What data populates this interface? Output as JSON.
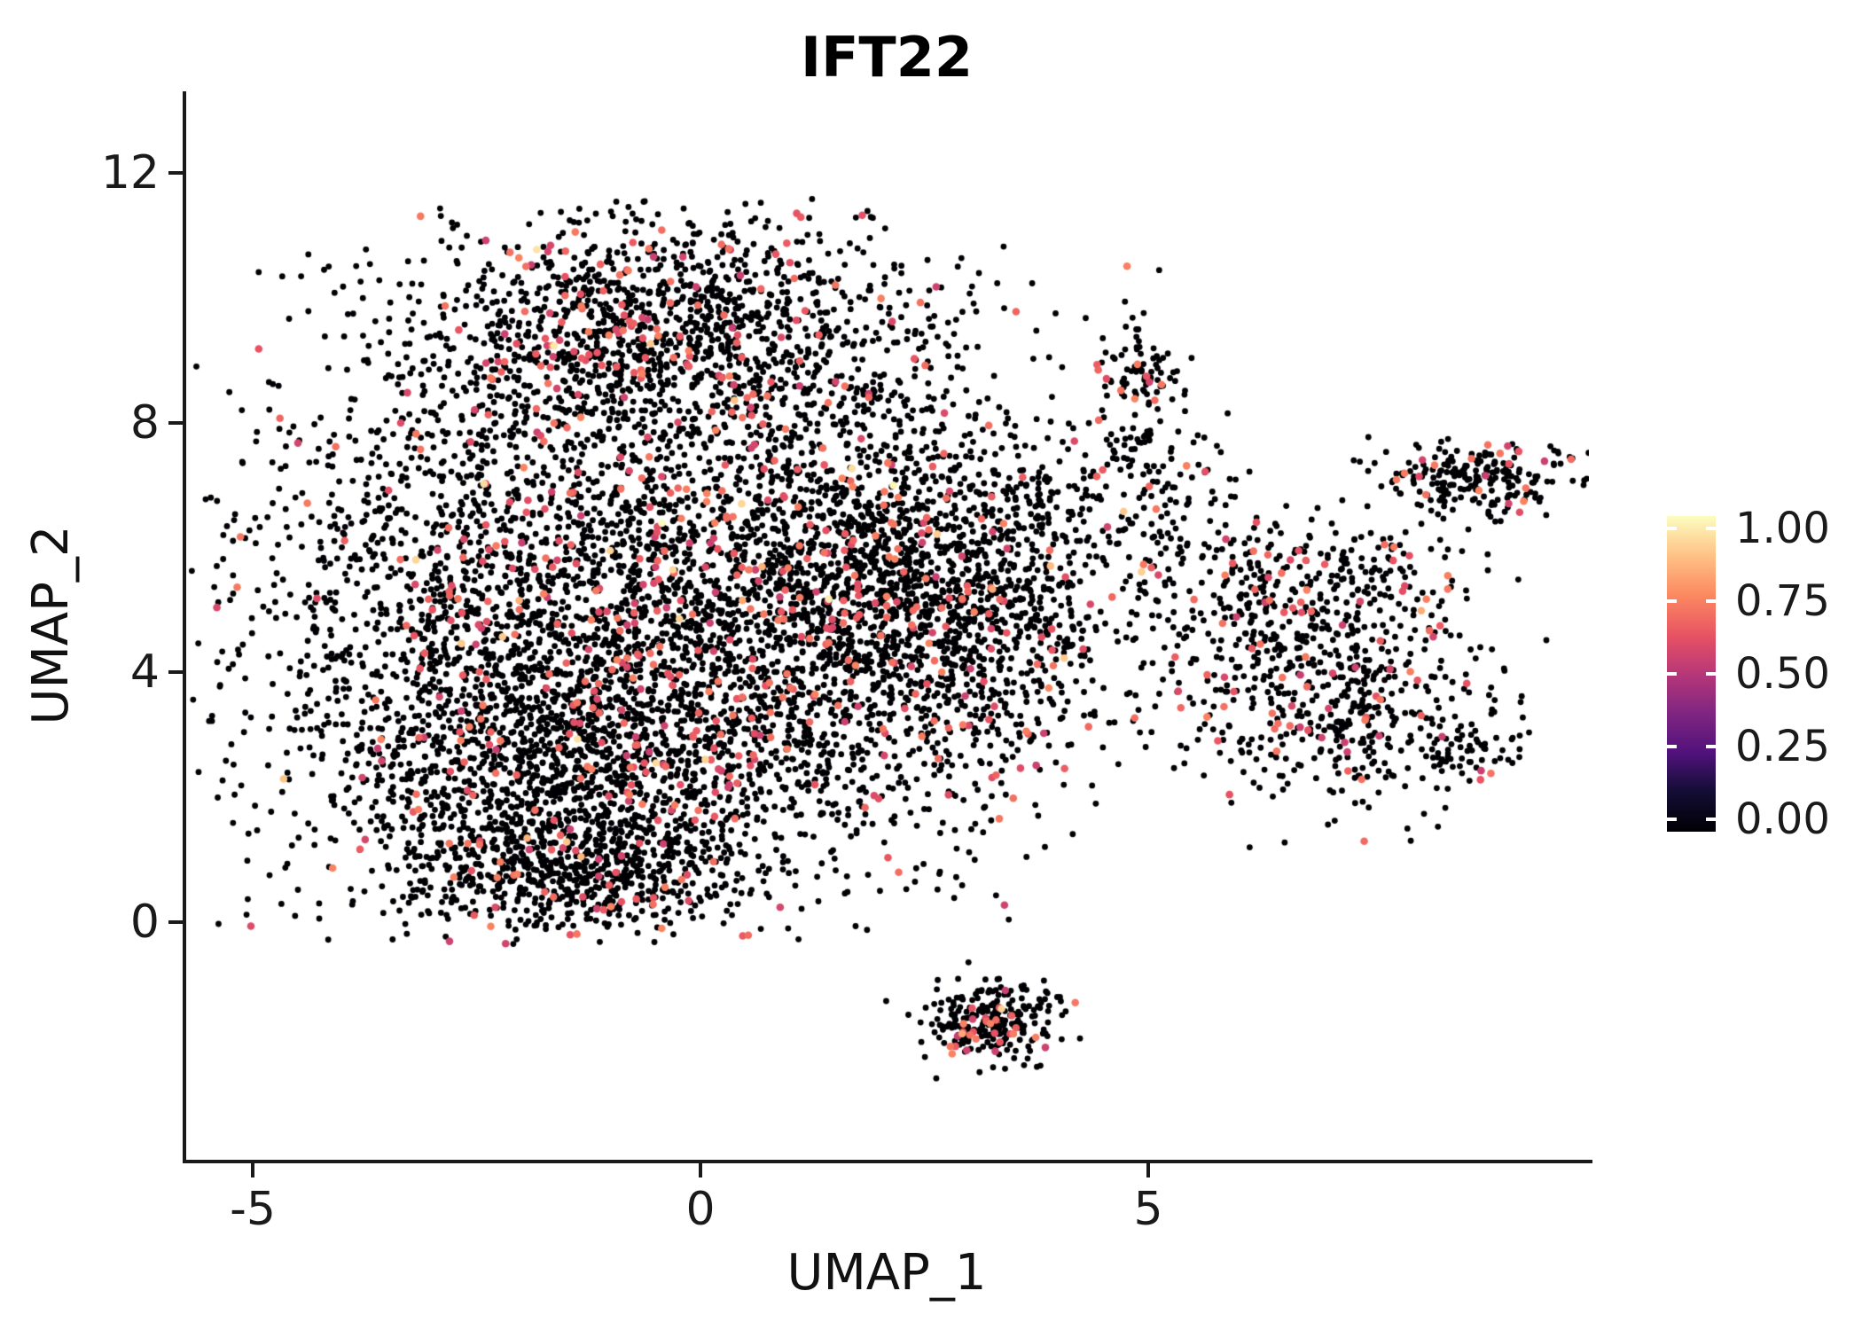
{
  "title": "IFT22",
  "chart_data": {
    "type": "scatter",
    "subtype": "umap-feature-plot",
    "title": "IFT22",
    "xlabel": "UMAP_1",
    "ylabel": "UMAP_2",
    "xlim": [
      -5.7,
      9.9
    ],
    "ylim": [
      -3.8,
      12.9
    ],
    "grid": false,
    "background": "#ffffff",
    "point_color_low": "#000004",
    "point_color_mid": "#e75263",
    "point_color_high": "#fcfdbf",
    "xticks": {
      "labels": [
        "-5",
        "0",
        "5"
      ],
      "values": [
        -5,
        0,
        5
      ]
    },
    "yticks": {
      "labels": [
        "12",
        "8",
        "4",
        "0"
      ],
      "values": [
        12,
        8,
        4,
        0
      ]
    },
    "colorbar": {
      "position": "right",
      "ticks": [
        "1.00",
        "0.75",
        "0.50",
        "0.25",
        "0.00"
      ],
      "values": [
        1.0,
        0.75,
        0.5,
        0.25,
        0.0
      ],
      "stops": [
        {
          "p": 0.0,
          "c": "#000004"
        },
        {
          "p": 0.13,
          "c": "#140e36"
        },
        {
          "p": 0.25,
          "c": "#51127c"
        },
        {
          "p": 0.38,
          "c": "#822681"
        },
        {
          "p": 0.5,
          "c": "#b73779"
        },
        {
          "p": 0.62,
          "c": "#e75263"
        },
        {
          "p": 0.75,
          "c": "#fc8961"
        },
        {
          "p": 0.88,
          "c": "#fec488"
        },
        {
          "p": 1.0,
          "c": "#fcfdbf"
        }
      ]
    },
    "clusters": [
      {
        "n": 1700,
        "cx": -2.3,
        "cy": 5.2,
        "sx": 1.5,
        "sy": 2.0,
        "frac": 0.07
      },
      {
        "n": 1500,
        "cx": -0.4,
        "cy": 9.4,
        "sx": 1.55,
        "sy": 1.05,
        "frac": 0.1
      },
      {
        "n": 2100,
        "cx": 0.6,
        "cy": 4.4,
        "sx": 1.6,
        "sy": 1.8,
        "frac": 0.09
      },
      {
        "n": 1100,
        "cx": -1.6,
        "cy": 2.1,
        "sx": 1.3,
        "sy": 1.1,
        "frac": 0.07
      },
      {
        "n": 650,
        "cx": 1.9,
        "cy": 6.2,
        "sx": 1.0,
        "sy": 1.3,
        "frac": 0.08
      },
      {
        "n": 480,
        "cx": -1.4,
        "cy": 0.7,
        "sx": 0.95,
        "sy": 0.5,
        "frac": 0.09
      },
      {
        "n": 620,
        "cx": 2.9,
        "cy": 4.7,
        "sx": 0.8,
        "sy": 1.2,
        "frac": 0.09
      },
      {
        "n": 150,
        "cx": 3.7,
        "cy": 6.6,
        "sx": 0.7,
        "sy": 0.6,
        "frac": 0.07
      },
      {
        "n": 90,
        "cx": 4.85,
        "cy": 8.7,
        "sx": 0.28,
        "sy": 0.4,
        "frac": 0.12
      },
      {
        "n": 45,
        "cx": 4.8,
        "cy": 7.5,
        "sx": 0.35,
        "sy": 0.35,
        "frac": 0.05
      },
      {
        "n": 230,
        "cx": 8.6,
        "cy": 7.1,
        "sx": 0.55,
        "sy": 0.3,
        "frac": 0.1
      },
      {
        "n": 170,
        "cx": 6.4,
        "cy": 5.2,
        "sx": 0.5,
        "sy": 0.55,
        "frac": 0.08
      },
      {
        "n": 470,
        "cx": 7.2,
        "cy": 3.5,
        "sx": 0.85,
        "sy": 0.8,
        "frac": 0.09
      },
      {
        "n": 55,
        "cx": 8.5,
        "cy": 2.7,
        "sx": 0.3,
        "sy": 0.2,
        "frac": 0.08
      },
      {
        "n": 35,
        "cx": 5.7,
        "cy": 6.4,
        "sx": 0.45,
        "sy": 0.5,
        "frac": 0.06
      },
      {
        "n": 270,
        "cx": 3.25,
        "cy": -1.6,
        "sx": 0.38,
        "sy": 0.3,
        "frac": 0.1
      },
      {
        "n": 60,
        "cx": 4.3,
        "cy": 5.3,
        "sx": 0.8,
        "sy": 0.9,
        "frac": 0.05
      },
      {
        "n": 40,
        "cx": 5.3,
        "cy": 4.2,
        "sx": 0.6,
        "sy": 0.8,
        "frac": 0.05
      },
      {
        "n": 60,
        "cx": 5.15,
        "cy": 6.9,
        "sx": 0.5,
        "sy": 0.9,
        "frac": 0.08
      },
      {
        "n": 120,
        "cx": 7.4,
        "cy": 5.6,
        "sx": 0.6,
        "sy": 0.5,
        "frac": 0.08
      }
    ]
  }
}
